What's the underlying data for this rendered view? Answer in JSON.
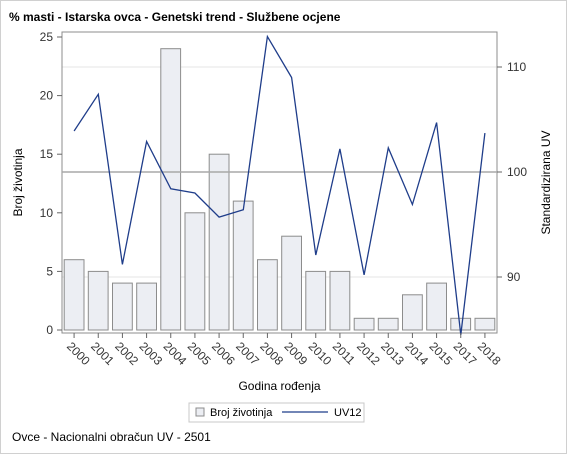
{
  "title": "% masti - Istarska ovca - Genetski trend - Službene ocjene",
  "footnote": "Ovce - Nacionalni obračun UV - 2501",
  "colors": {
    "bar_fill": "#eceef3",
    "bar_stroke": "#8c8c8c",
    "line": "#1f3d8a",
    "reference_line": "#a8a8a8",
    "grid": "#e6e6e6"
  },
  "chart_data": {
    "type": "bar",
    "categories": [
      "2000",
      "2001",
      "2002",
      "2003",
      "2004",
      "2005",
      "2006",
      "2007",
      "2008",
      "2009",
      "2010",
      "2011",
      "2012",
      "2013",
      "2014",
      "2015",
      "2017",
      "2018"
    ],
    "xlabel": "Godina rođenja",
    "ylabel": "Broj životinja",
    "y2label": "Standardizirana UV",
    "ylim": [
      0,
      25
    ],
    "y2lim": [
      84.5,
      112.9
    ],
    "yticks": [
      0,
      5,
      10,
      15,
      20,
      25
    ],
    "y2ticks": [
      90,
      100,
      110
    ],
    "reference_y2": 100,
    "grid": true,
    "legend_position": "bottom",
    "series": [
      {
        "name": "Broj životinja",
        "type": "bar",
        "axis": "left",
        "values": [
          6,
          5,
          4,
          4,
          24,
          10,
          15,
          11,
          6,
          8,
          5,
          5,
          1,
          1,
          3,
          4,
          1,
          1
        ]
      },
      {
        "name": "UV12",
        "type": "line",
        "axis": "right",
        "values": [
          103.9,
          107.4,
          91.2,
          102.9,
          98.4,
          98.0,
          95.7,
          96.4,
          112.9,
          109.0,
          92.1,
          102.2,
          90.2,
          102.3,
          96.9,
          104.7,
          84.5,
          103.7
        ]
      }
    ]
  }
}
